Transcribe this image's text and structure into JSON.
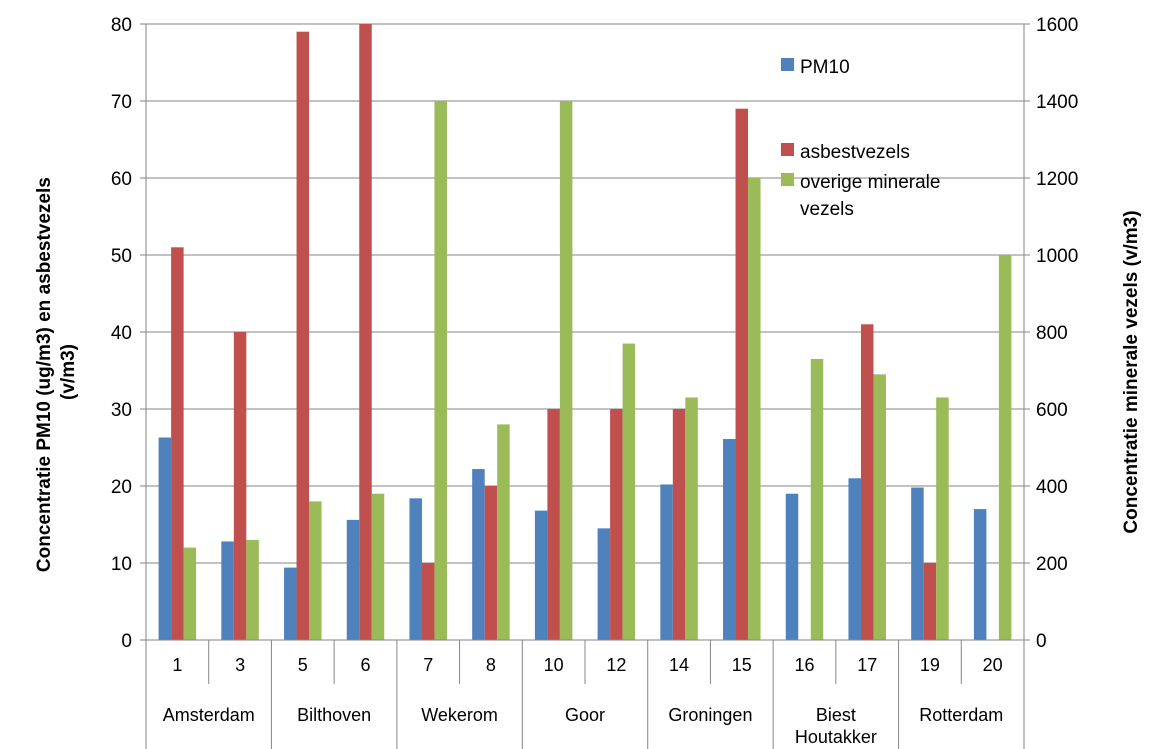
{
  "chart_data": {
    "type": "bar",
    "categories": [
      "1",
      "3",
      "5",
      "6",
      "7",
      "8",
      "10",
      "12",
      "14",
      "15",
      "16",
      "17",
      "19",
      "20"
    ],
    "groups": [
      {
        "label": "Amsterdam",
        "lines": [
          "Amsterdam"
        ],
        "span": 2
      },
      {
        "label": "Bilthoven",
        "lines": [
          "Bilthoven"
        ],
        "span": 2
      },
      {
        "label": "Wekerom",
        "lines": [
          "Wekerom"
        ],
        "span": 2
      },
      {
        "label": "Goor",
        "lines": [
          "Goor"
        ],
        "span": 2
      },
      {
        "label": "Groningen",
        "lines": [
          "Groningen"
        ],
        "span": 2
      },
      {
        "label": "Biest Houtakker",
        "lines": [
          "Biest",
          "Houtakker"
        ],
        "span": 2
      },
      {
        "label": "Rotterdam",
        "lines": [
          "Rotterdam"
        ],
        "span": 2
      }
    ],
    "series": [
      {
        "name": "PM10",
        "axis": "left",
        "color": "#4F81BD",
        "values": [
          26.3,
          12.8,
          9.4,
          15.6,
          18.4,
          22.2,
          16.8,
          14.5,
          20.2,
          26.1,
          19.0,
          21.0,
          19.8,
          17.0
        ]
      },
      {
        "name": "asbestvezels",
        "axis": "left",
        "color": "#C0504D",
        "values": [
          51,
          40,
          79,
          80,
          10,
          20,
          30,
          30,
          30,
          69,
          null,
          41,
          10,
          null
        ]
      },
      {
        "name": "overige minerale vezels",
        "legend_lines": [
          "overige minerale",
          "vezels"
        ],
        "axis": "right",
        "color": "#9BBB59",
        "values": [
          240,
          260,
          360,
          380,
          1400,
          560,
          1400,
          770,
          630,
          1200,
          730,
          690,
          630,
          1000
        ]
      }
    ],
    "y_left": {
      "label_lines": [
        "Concentratie PM10 (ug/m3) en asbestvezels",
        "(v/m3)"
      ],
      "range": [
        0,
        80
      ],
      "ticks": [
        "0",
        "10",
        "20",
        "30",
        "40",
        "50",
        "60",
        "70",
        "80"
      ]
    },
    "y_right": {
      "label": "Concentratie minerale vezels (v/m3)",
      "range": [
        0,
        1600
      ],
      "ticks": [
        "0",
        "200",
        "400",
        "600",
        "800",
        "1000",
        "1200",
        "1400",
        "1600"
      ]
    },
    "grid": true,
    "legend_position": "top-right"
  }
}
